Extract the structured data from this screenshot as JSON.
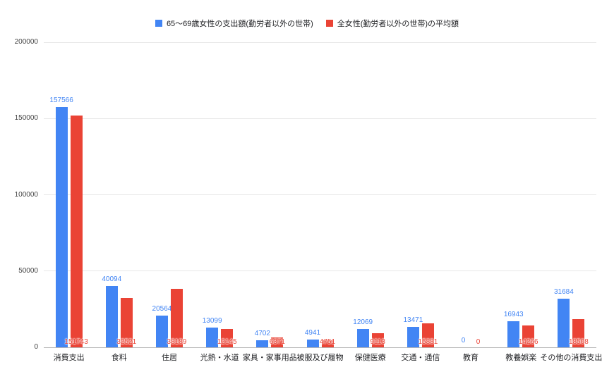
{
  "chart_data": {
    "type": "bar",
    "title": "",
    "categories": [
      "消費支出",
      "食料",
      "住居",
      "光熱・水道",
      "家具・家事用品",
      "被服及び履物",
      "保健医療",
      "交通・通信",
      "教育",
      "教養娯楽",
      "その他の消費支出"
    ],
    "series": [
      {
        "name": "65〜69歳女性の支出額(勤労者以外の世帯)",
        "color": "#4285f4",
        "values": [
          157566,
          40094,
          20564,
          13099,
          4702,
          4941,
          12069,
          13471,
          0,
          16943,
          31684
        ]
      },
      {
        "name": "全女性(勤労者以外の世帯)の平均額",
        "color": "#ea4335",
        "values": [
          151743,
          32521,
          38189,
          12145,
          6371,
          4751,
          9113,
          15881,
          0,
          14266,
          18508
        ]
      }
    ],
    "xlabel": "",
    "ylabel": "",
    "ylim": [
      0,
      200000
    ],
    "yticks": [
      0,
      50000,
      100000,
      150000,
      200000
    ],
    "grid": true,
    "legend_position": "top",
    "value_labels": true
  }
}
